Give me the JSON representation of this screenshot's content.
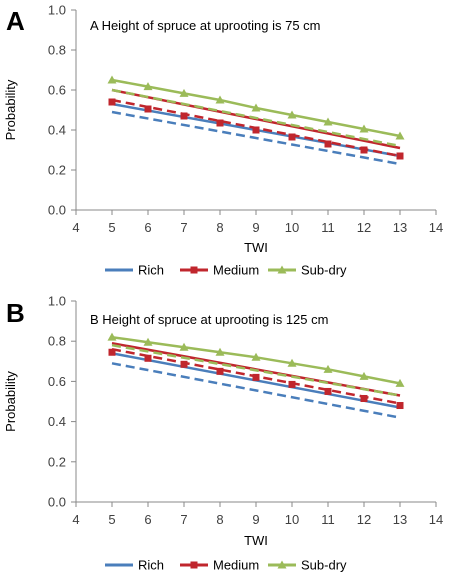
{
  "chart_data": [
    {
      "panel": "A",
      "type": "line",
      "annotation": "A Height of spruce at uprooting is 75 cm",
      "xlabel": "TWI",
      "ylabel": "Probability",
      "xlim": [
        4,
        14
      ],
      "ylim": [
        0.0,
        1.0
      ],
      "xticks": [
        "4",
        "5",
        "6",
        "7",
        "8",
        "9",
        "10",
        "11",
        "12",
        "13",
        "14"
      ],
      "yticks": [
        "0.0",
        "0.2",
        "0.4",
        "0.6",
        "0.8",
        "1.0"
      ],
      "grid": false,
      "legend_position": "bottom",
      "legend": [
        "Rich",
        "Medium",
        "Sub-dry"
      ],
      "series": [
        {
          "name": "Rich",
          "style": "line",
          "color": "#4a7ebb",
          "x": [
            5,
            13
          ],
          "y": [
            0.53,
            0.27
          ]
        },
        {
          "name": "Rich",
          "style": "dashed",
          "color": "#4a7ebb",
          "x": [
            5,
            13
          ],
          "y": [
            0.49,
            0.23
          ]
        },
        {
          "name": "Medium",
          "style": "markers-square",
          "color": "#c0262d",
          "x": [
            5,
            6,
            7,
            8,
            9,
            10,
            11,
            12,
            13
          ],
          "y": [
            0.54,
            0.505,
            0.47,
            0.435,
            0.4,
            0.365,
            0.33,
            0.3,
            0.27
          ]
        },
        {
          "name": "Medium",
          "style": "line",
          "color": "#c0262d",
          "x": [
            5,
            13
          ],
          "y": [
            0.6,
            0.31
          ]
        },
        {
          "name": "Medium",
          "style": "dashed",
          "color": "#c0262d",
          "x": [
            5,
            13
          ],
          "y": [
            0.55,
            0.27
          ]
        },
        {
          "name": "Sub-dry",
          "style": "line-markers-triangle",
          "color": "#9bbb59",
          "x": [
            5,
            6,
            7,
            8,
            9,
            10,
            11,
            12,
            13
          ],
          "y": [
            0.65,
            0.617,
            0.583,
            0.55,
            0.51,
            0.475,
            0.44,
            0.405,
            0.37
          ]
        },
        {
          "name": "Sub-dry",
          "style": "dashed",
          "color": "#9bbb59",
          "x": [
            5,
            13
          ],
          "y": [
            0.6,
            0.32
          ]
        }
      ]
    },
    {
      "panel": "B",
      "type": "line",
      "annotation": "B Height of spruce at uprooting is 125 cm",
      "xlabel": "TWI",
      "ylabel": "Probability",
      "xlim": [
        4,
        14
      ],
      "ylim": [
        0.0,
        1.0
      ],
      "xticks": [
        "4",
        "5",
        "6",
        "7",
        "8",
        "9",
        "10",
        "11",
        "12",
        "13",
        "14"
      ],
      "yticks": [
        "0.0",
        "0.2",
        "0.4",
        "0.6",
        "0.8",
        "1.0"
      ],
      "grid": false,
      "legend_position": "bottom",
      "legend": [
        "Rich",
        "Medium",
        "Sub-dry"
      ],
      "series": [
        {
          "name": "Rich",
          "style": "line",
          "color": "#4a7ebb",
          "x": [
            5,
            13
          ],
          "y": [
            0.74,
            0.47
          ]
        },
        {
          "name": "Rich",
          "style": "dashed",
          "color": "#4a7ebb",
          "x": [
            5,
            13
          ],
          "y": [
            0.69,
            0.42
          ]
        },
        {
          "name": "Medium",
          "style": "markers-square",
          "color": "#c0262d",
          "x": [
            5,
            6,
            7,
            8,
            9,
            10,
            11,
            12,
            13
          ],
          "y": [
            0.745,
            0.715,
            0.685,
            0.65,
            0.62,
            0.585,
            0.55,
            0.515,
            0.48
          ]
        },
        {
          "name": "Medium",
          "style": "line",
          "color": "#c0262d",
          "x": [
            5,
            13
          ],
          "y": [
            0.79,
            0.53
          ]
        },
        {
          "name": "Medium",
          "style": "dashed",
          "color": "#c0262d",
          "x": [
            5,
            13
          ],
          "y": [
            0.76,
            0.49
          ]
        },
        {
          "name": "Sub-dry",
          "style": "line-markers-triangle",
          "color": "#9bbb59",
          "x": [
            5,
            6,
            7,
            8,
            9,
            10,
            11,
            12,
            13
          ],
          "y": [
            0.82,
            0.795,
            0.77,
            0.745,
            0.72,
            0.69,
            0.66,
            0.625,
            0.59
          ]
        },
        {
          "name": "Sub-dry",
          "style": "dashed",
          "color": "#9bbb59",
          "x": [
            5,
            13
          ],
          "y": [
            0.78,
            0.53
          ]
        }
      ]
    }
  ]
}
